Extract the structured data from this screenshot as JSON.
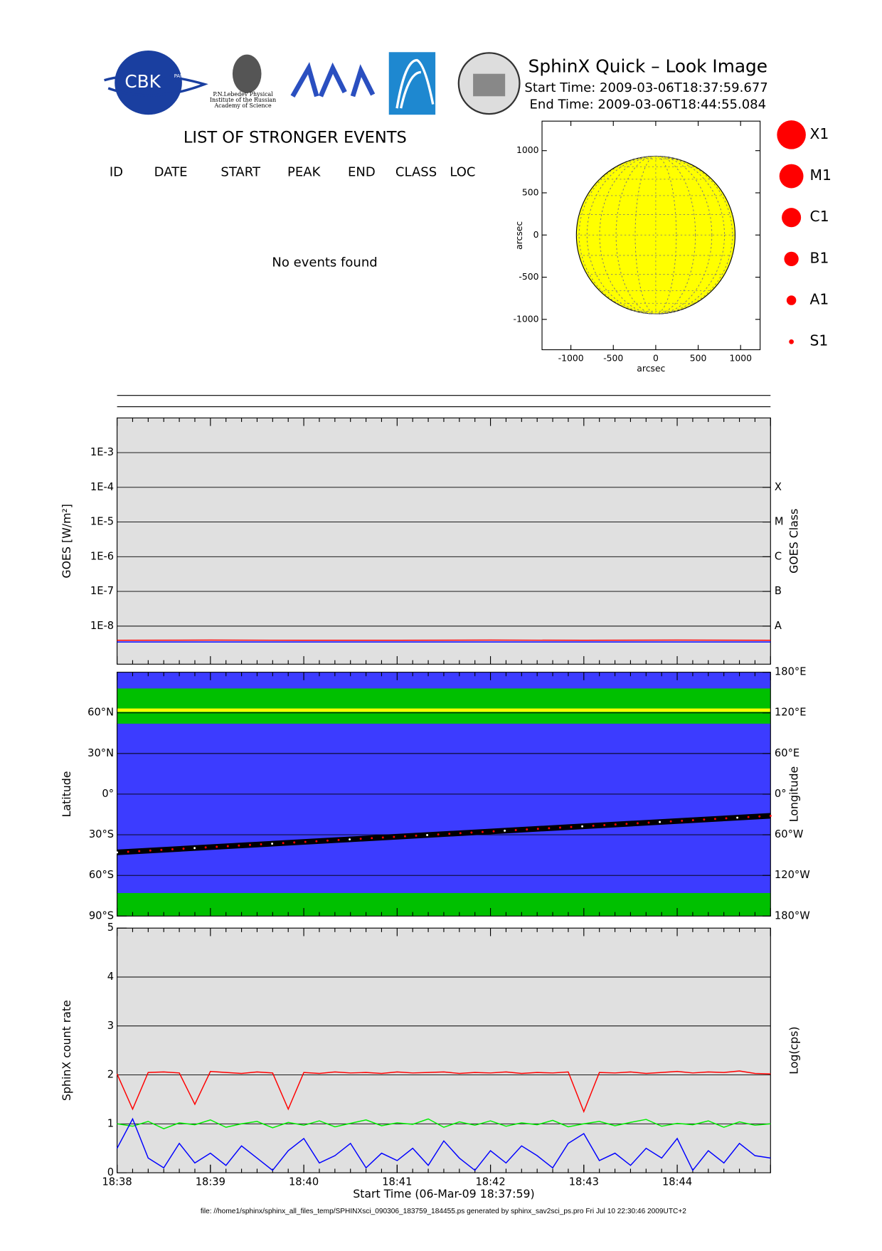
{
  "header": {
    "title": "SphinX Quick – Look Image",
    "start": "Start Time: 2009-03-06T18:37:59.677",
    "end": "End Time: 2009-03-06T18:44:55.084",
    "logo": "CBK",
    "logo_sub": "PAN",
    "caption": [
      "P.N.Lebedev Physical",
      "Institute of the Russian",
      "Academy of Science"
    ]
  },
  "events": {
    "title": "LIST OF STRONGER EVENTS",
    "columns": [
      "ID",
      "DATE",
      "START",
      "PEAK",
      "END",
      "CLASS",
      "LOC"
    ],
    "message": "No events found"
  },
  "footer": "file: //home1/sphinx/sphinx_all_files_temp/SPHINXsci_090306_183759_184455.ps generated by sphinx_sav2sci_ps.pro Fri Jul 10 22:30:46 2009UTC+2",
  "chart_data": [
    {
      "type": "solar-disk",
      "xlabel": "arcsec",
      "ylabel": "arcsec",
      "radius": 935,
      "color": "#ffff00",
      "xlim": [
        -1340,
        1230
      ],
      "ylim": [
        -1360,
        1350
      ],
      "xticks": [
        -1000,
        -500,
        0,
        500,
        1000
      ],
      "yticks": [
        -1000,
        -500,
        0,
        500,
        1000
      ],
      "legend": [
        "X1",
        "M1",
        "C1",
        "B1",
        "A1",
        "S1"
      ],
      "legend_color": "#ff0000"
    },
    {
      "type": "line",
      "ylabel": "GOES [W/m²]",
      "y2label": "GOES Class",
      "log": true,
      "grid": true,
      "background": "#e0e0e0",
      "xlim": [
        "18:38:00",
        "18:45:00"
      ],
      "ylim": [
        8e-10,
        0.01
      ],
      "yticks": [
        {
          "value": 0.001,
          "label": "1E-3"
        },
        {
          "value": 0.0001,
          "label": "1E-4"
        },
        {
          "value": 1e-05,
          "label": "1E-5"
        },
        {
          "value": 1e-06,
          "label": "1E-6"
        },
        {
          "value": 1e-07,
          "label": "1E-7"
        },
        {
          "value": 1e-08,
          "label": "1E-8"
        }
      ],
      "y2ticks": [
        {
          "value": 0.0001,
          "label": "X"
        },
        {
          "value": 1e-05,
          "label": "M"
        },
        {
          "value": 1e-06,
          "label": "C"
        },
        {
          "value": 1e-07,
          "label": "B"
        },
        {
          "value": 1e-08,
          "label": "A"
        }
      ],
      "x": [
        "18:38:00",
        "18:39:00",
        "18:40:00",
        "18:41:00",
        "18:42:00",
        "18:43:00",
        "18:44:00",
        "18:45:00"
      ],
      "series": [
        {
          "color": "#ff0000",
          "values": [
            3.9e-09,
            3.95e-09,
            3.9e-09,
            3.9e-09,
            3.95e-09,
            3.9e-09,
            3.95e-09,
            3.9e-09
          ]
        },
        {
          "color": "#0000ff",
          "values": [
            3.5e-09,
            3.5e-09,
            3.5e-09,
            3.5e-09,
            3.5e-09,
            3.5e-09,
            3.5e-09,
            3.5e-09
          ]
        }
      ]
    },
    {
      "type": "map",
      "ylabel": "Latitude",
      "y2label": "Longitude",
      "grid": true,
      "background": "#3c3cff",
      "xlim": [
        "18:38:00",
        "18:45:00"
      ],
      "ylim": [
        -90,
        90
      ],
      "y2lim": [
        -180,
        180
      ],
      "yticks": [
        {
          "value": -90,
          "label": "90°S"
        },
        {
          "value": -60,
          "label": "60°S"
        },
        {
          "value": -30,
          "label": "30°S"
        },
        {
          "value": 0,
          "label": "0°"
        },
        {
          "value": 30,
          "label": "30°N"
        },
        {
          "value": 60,
          "label": "60°N"
        }
      ],
      "y2ticks": [
        {
          "value": -180,
          "label": "180°W"
        },
        {
          "value": -120,
          "label": "120°W"
        },
        {
          "value": -60,
          "label": "60°W"
        },
        {
          "value": 0,
          "label": "0°"
        },
        {
          "value": 60,
          "label": "60°E"
        },
        {
          "value": 120,
          "label": "120°E"
        },
        {
          "value": 180,
          "label": "180°E"
        }
      ],
      "bands": [
        {
          "color": "#00c000",
          "from": 52,
          "to": 78
        },
        {
          "color": "#00c000",
          "from": -90,
          "to": -73
        }
      ],
      "line": {
        "color": "#ffff00",
        "value": 62
      },
      "track": {
        "color": "#000000",
        "x": [
          "18:38:00",
          "18:45:00"
        ],
        "values": [
          -43,
          -16
        ]
      }
    },
    {
      "type": "line",
      "ylabel": "SphinX count rate",
      "y2label": "Log(cps)",
      "xlabel": "Start Time (06-Mar-09 18:37:59)",
      "grid": true,
      "background": "#e0e0e0",
      "xlim": [
        "18:38:00",
        "18:45:00"
      ],
      "ylim": [
        0,
        5
      ],
      "yticks": [
        0,
        1,
        2,
        3,
        4,
        5
      ],
      "xticks": [
        "18:38",
        "18:39",
        "18:40",
        "18:41",
        "18:42",
        "18:43",
        "18:44"
      ],
      "x": [
        "18:38:00",
        "18:38:10",
        "18:38:20",
        "18:38:30",
        "18:38:40",
        "18:38:50",
        "18:39:00",
        "18:39:10",
        "18:39:20",
        "18:39:30",
        "18:39:40",
        "18:39:50",
        "18:40:00",
        "18:40:10",
        "18:40:20",
        "18:40:30",
        "18:40:40",
        "18:40:50",
        "18:41:00",
        "18:41:10",
        "18:41:20",
        "18:41:30",
        "18:41:40",
        "18:41:50",
        "18:42:00",
        "18:42:10",
        "18:42:20",
        "18:42:30",
        "18:42:40",
        "18:42:50",
        "18:43:00",
        "18:43:10",
        "18:43:20",
        "18:43:30",
        "18:43:40",
        "18:43:50",
        "18:44:00",
        "18:44:10",
        "18:44:20",
        "18:44:30",
        "18:44:40",
        "18:44:50",
        "18:45:00"
      ],
      "series": [
        {
          "color": "#ff0000",
          "values": [
            2.02,
            1.3,
            2.05,
            2.06,
            2.04,
            1.4,
            2.07,
            2.05,
            2.03,
            2.06,
            2.04,
            1.3,
            2.05,
            2.03,
            2.06,
            2.04,
            2.05,
            2.03,
            2.06,
            2.04,
            2.05,
            2.06,
            2.03,
            2.05,
            2.04,
            2.06,
            2.03,
            2.05,
            2.04,
            2.06,
            1.25,
            2.05,
            2.04,
            2.06,
            2.03,
            2.05,
            2.07,
            2.04,
            2.06,
            2.05,
            2.08,
            2.03,
            2.02
          ]
        },
        {
          "color": "#00ee00",
          "values": [
            1.0,
            0.95,
            1.05,
            0.9,
            1.02,
            0.98,
            1.08,
            0.93,
            1.0,
            1.05,
            0.92,
            1.03,
            0.97,
            1.06,
            0.94,
            1.01,
            1.08,
            0.96,
            1.02,
            0.99,
            1.1,
            0.93,
            1.04,
            0.97,
            1.06,
            0.95,
            1.02,
            0.98,
            1.07,
            0.94,
            1.0,
            1.05,
            0.96,
            1.03,
            1.09,
            0.95,
            1.01,
            0.98,
            1.06,
            0.93,
            1.04,
            0.97,
            1.0
          ]
        },
        {
          "color": "#0000ff",
          "values": [
            0.5,
            1.1,
            0.3,
            0.1,
            0.6,
            0.2,
            0.4,
            0.15,
            0.55,
            0.3,
            0.05,
            0.45,
            0.7,
            0.2,
            0.35,
            0.6,
            0.1,
            0.4,
            0.25,
            0.5,
            0.15,
            0.65,
            0.3,
            0.05,
            0.45,
            0.2,
            0.55,
            0.35,
            0.1,
            0.6,
            0.8,
            0.25,
            0.4,
            0.15,
            0.5,
            0.3,
            0.7,
            0.05,
            0.45,
            0.2,
            0.6,
            0.35,
            0.3
          ]
        }
      ]
    }
  ]
}
